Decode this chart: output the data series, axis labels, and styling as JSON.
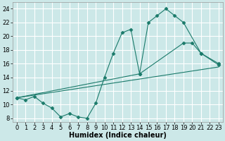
{
  "bg_color": "#cce8e8",
  "grid_color": "#aacccc",
  "line_color": "#1a7a6a",
  "xlabel": "Humidex (Indice chaleur)",
  "xlabel_fontsize": 7,
  "tick_fontsize": 6,
  "ylim": [
    7.5,
    25
  ],
  "xlim": [
    -0.5,
    23.5
  ],
  "yticks": [
    8,
    10,
    12,
    14,
    16,
    18,
    20,
    22,
    24
  ],
  "xticks": [
    0,
    1,
    2,
    3,
    4,
    5,
    6,
    7,
    8,
    9,
    10,
    11,
    12,
    13,
    14,
    15,
    16,
    17,
    18,
    19,
    20,
    21,
    22,
    23
  ],
  "line1_x": [
    0,
    1,
    2,
    3,
    4,
    5,
    6,
    7,
    8,
    9,
    10,
    11,
    12,
    13,
    14,
    15,
    16,
    17,
    18,
    19,
    21,
    23
  ],
  "line1_y": [
    11,
    10.7,
    11.2,
    10.2,
    9.5,
    8.2,
    8.7,
    8.2,
    8.0,
    10.2,
    14.0,
    17.5,
    20.5,
    21.0,
    14.5,
    22,
    23,
    24,
    23,
    22,
    17.5,
    15.8
  ],
  "line2_x": [
    0,
    23
  ],
  "line2_y": [
    11,
    15.5
  ],
  "line3_x": [
    0,
    14,
    19,
    20,
    21,
    23
  ],
  "line3_y": [
    11,
    14.5,
    19,
    19,
    17.5,
    16.0
  ]
}
